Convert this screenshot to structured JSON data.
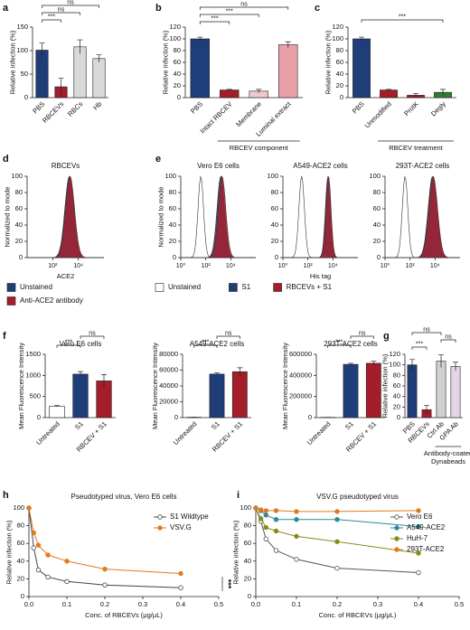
{
  "chart_data": [
    {
      "panel_label": "a",
      "type": "bar",
      "ylabel": "Relative infection (%)",
      "categories": [
        "PBS",
        "RBCEVs",
        "RBCs",
        "Hb"
      ],
      "values": [
        101,
        23,
        108,
        83
      ],
      "errors": [
        15,
        18,
        15,
        8
      ],
      "colors": [
        "#1f3d78",
        "#a31d2b",
        "#d9d9d9",
        "#d9d9d9"
      ],
      "ylim": [
        0,
        150
      ],
      "yticks": [
        0,
        50,
        100,
        150
      ],
      "annotations": [
        "***",
        "ns",
        "ns"
      ]
    },
    {
      "panel_label": "b",
      "type": "bar",
      "ylabel": "Relative infection (%)",
      "xlabel": "RBCEV component",
      "categories": [
        "PBS",
        "Intact RBCEV",
        "Membrane",
        "Luminal extract"
      ],
      "values": [
        100,
        13,
        11,
        90
      ],
      "errors": [
        3,
        1,
        3,
        5
      ],
      "colors": [
        "#1f3d78",
        "#a31d2b",
        "#f0c8cc",
        "#e8a0a8"
      ],
      "ylim": [
        0,
        120
      ],
      "yticks": [
        0,
        20,
        40,
        60,
        80,
        100,
        120
      ],
      "annotations": [
        "***",
        "***",
        "ns"
      ]
    },
    {
      "panel_label": "c",
      "type": "bar",
      "ylabel": "Relative infection (%)",
      "xlabel": "RBCEV treatment",
      "categories": [
        "PBS",
        "Unmodified",
        "ProtK",
        "Degly"
      ],
      "values": [
        100,
        13,
        4,
        9
      ],
      "errors": [
        3,
        1,
        3,
        5
      ],
      "colors": [
        "#1f3d78",
        "#a31d2b",
        "#a31d2b",
        "#2e7d32"
      ],
      "ylim": [
        0,
        120
      ],
      "yticks": [
        0,
        20,
        40,
        60,
        80,
        100,
        120
      ],
      "annotations": [
        "***"
      ]
    },
    {
      "panel_label": "d",
      "type": "flow",
      "title": "RBCEVs",
      "ylabel": "Normalized to mode",
      "xlabel": "ACE2",
      "xscale": "log",
      "xlim": [
        1,
        1000000
      ],
      "xticks": [
        {
          "value": 100,
          "label": "10²"
        },
        {
          "value": 10000,
          "label": "10⁴"
        }
      ],
      "ylim": [
        0,
        100
      ],
      "yticks": [
        0,
        20,
        40,
        60,
        80,
        100
      ],
      "series": [
        {
          "name": "Unstained",
          "color": "#1f3d78"
        },
        {
          "name": "Anti-ACE2 antibody",
          "color": "#a31d2b"
        }
      ]
    },
    {
      "panel_label": "e",
      "type": "flow",
      "title": "Vero E6 cells",
      "ylabel": "Normalized to mode",
      "xscale": "log",
      "xlim": [
        1,
        1000000
      ],
      "xticks": [
        {
          "value": 1,
          "label": "10⁰"
        },
        {
          "value": 100,
          "label": "10²"
        },
        {
          "value": 10000,
          "label": "10⁴"
        }
      ],
      "ylim": [
        0,
        100
      ],
      "yticks": [
        0,
        20,
        40,
        60,
        80,
        100
      ],
      "series": [
        {
          "name": "Unstained",
          "color": "#ffffff"
        },
        {
          "name": "S1",
          "color": "#1f3d78"
        },
        {
          "name": "RBCEVs + S1",
          "color": "#a31d2b"
        }
      ]
    },
    {
      "type": "flow",
      "title": "A549-ACE2 cells",
      "xlabel": "His tag",
      "xscale": "log",
      "xlim": [
        1,
        1000000
      ],
      "xticks": [
        {
          "value": 1,
          "label": "10⁰"
        },
        {
          "value": 100,
          "label": "10²"
        },
        {
          "value": 10000,
          "label": "10⁴"
        }
      ],
      "ylim": [
        0,
        100
      ],
      "yticks": [
        0,
        20,
        40,
        60,
        80,
        100
      ]
    },
    {
      "type": "flow",
      "title": "293T-ACE2 cells",
      "xscale": "log",
      "xlim": [
        1,
        1000000
      ],
      "xticks": [
        {
          "value": 1,
          "label": "10⁰"
        },
        {
          "value": 100,
          "label": "10²"
        },
        {
          "value": 10000,
          "label": "10⁴"
        }
      ],
      "ylim": [
        0,
        100
      ],
      "yticks": [
        0,
        20,
        40,
        60,
        80,
        100
      ]
    },
    {
      "panel_label": "f",
      "type": "bar",
      "title": "Vero E6 cells",
      "ylabel": "Mean Fluorescence Intensity",
      "categories": [
        "Untreated",
        "S1",
        "RBCEV + S1"
      ],
      "values": [
        270,
        1030,
        870
      ],
      "errors": [
        15,
        60,
        150
      ],
      "colors": [
        "#ffffff",
        "#1f3d78",
        "#a31d2b"
      ],
      "ylim": [
        0,
        1500
      ],
      "yticks": [
        0,
        500,
        1000,
        1500
      ],
      "annotations": [
        "***",
        "ns"
      ]
    },
    {
      "type": "bar",
      "title": "A549-ACE2 cells",
      "ylabel": "Mean Fluorescence Intensity",
      "categories": [
        "Untreated",
        "S1",
        "RBCEV + S1"
      ],
      "values": [
        400,
        55000,
        58000
      ],
      "errors": [
        100,
        1500,
        5000
      ],
      "colors": [
        "#ffffff",
        "#1f3d78",
        "#a31d2b"
      ],
      "ylim": [
        0,
        80000
      ],
      "yticks": [
        0,
        20000,
        40000,
        60000,
        80000
      ],
      "annotations": [
        "ns",
        "***"
      ]
    },
    {
      "type": "bar",
      "title": "293T-ACE2 cells",
      "ylabel": "Mean Fluorescence Intensity",
      "categories": [
        "Untreated",
        "S1",
        "RBCEV + S1"
      ],
      "values": [
        2000,
        505000,
        515000
      ],
      "errors": [
        500,
        10000,
        20000
      ],
      "colors": [
        "#ffffff",
        "#1f3d78",
        "#a31d2b"
      ],
      "ylim": [
        0,
        600000
      ],
      "yticks": [
        0,
        200000,
        400000,
        600000
      ],
      "annotations": [
        "ns",
        "***"
      ]
    },
    {
      "panel_label": "g",
      "type": "bar",
      "ylabel": "Relative infection (%)",
      "xlabel": "Antibody-coated Dynabeads",
      "categories": [
        "PBS",
        "RBCEVs",
        "Ctrl Ab",
        "GPA Ab"
      ],
      "values": [
        100,
        15,
        107,
        97
      ],
      "errors": [
        10,
        8,
        12,
        8
      ],
      "colors": [
        "#1f3d78",
        "#a31d2b",
        "#d0d0d0",
        "#e4d4ea"
      ],
      "ylim": [
        0,
        120
      ],
      "yticks": [
        0,
        20,
        40,
        60,
        80,
        100,
        120
      ],
      "annotations": [
        "***",
        "ns",
        "ns"
      ]
    },
    {
      "panel_label": "h",
      "type": "line",
      "title": "Pseudotyped virus, Vero E6 cells",
      "ylabel": "Relative infection (%)",
      "xlabel": "Conc. of RBCEVs (μg/μL)",
      "x": [
        0,
        0.0125,
        0.025,
        0.05,
        0.1,
        0.2,
        0.4
      ],
      "series": [
        {
          "name": "S1 Wildtype",
          "color": "#444444",
          "marker_fill": "#ffffff",
          "values": [
            100,
            55,
            30,
            22,
            17,
            13,
            10
          ]
        },
        {
          "name": "VSV.G",
          "color": "#e07b20",
          "values": [
            100,
            72,
            58,
            47,
            40,
            31,
            26
          ]
        }
      ],
      "xlim": [
        0,
        0.5
      ],
      "xticks": [
        {
          "value": 0,
          "label": "0.0"
        },
        0.1,
        0.2,
        0.3,
        0.4,
        0.5
      ],
      "ylim": [
        0,
        100
      ],
      "yticks": [
        0,
        20,
        40,
        60,
        80,
        100
      ],
      "annotations": [
        "***"
      ]
    },
    {
      "panel_label": "i",
      "type": "line",
      "title": "VSV.G pseudotyped virus",
      "ylabel": "Relative infection (%)",
      "xlabel": "Conc. of RBCEVs (μg/μL)",
      "x": [
        0,
        0.0125,
        0.025,
        0.05,
        0.1,
        0.2,
        0.4
      ],
      "series": [
        {
          "name": "Vero E6",
          "color": "#555555",
          "marker_fill": "#ffffff",
          "values": [
            100,
            85,
            65,
            52,
            42,
            32,
            27
          ]
        },
        {
          "name": "A549-ACE2",
          "color": "#2a8a99",
          "values": [
            100,
            97,
            92,
            87,
            87,
            87,
            79
          ]
        },
        {
          "name": "HuH-7",
          "color": "#8a8a1a",
          "values": [
            100,
            88,
            78,
            74,
            68,
            62,
            49
          ]
        },
        {
          "name": "293T-ACE2",
          "color": "#e07b20",
          "values": [
            100,
            98,
            97,
            97,
            96,
            96,
            97
          ]
        }
      ],
      "xlim": [
        0,
        0.5
      ],
      "xticks": [
        {
          "value": 0,
          "label": "0.0"
        },
        0.1,
        0.2,
        0.3,
        0.4,
        0.5
      ],
      "ylim": [
        0,
        100
      ],
      "yticks": [
        0,
        20,
        40,
        60,
        80,
        100
      ]
    }
  ]
}
